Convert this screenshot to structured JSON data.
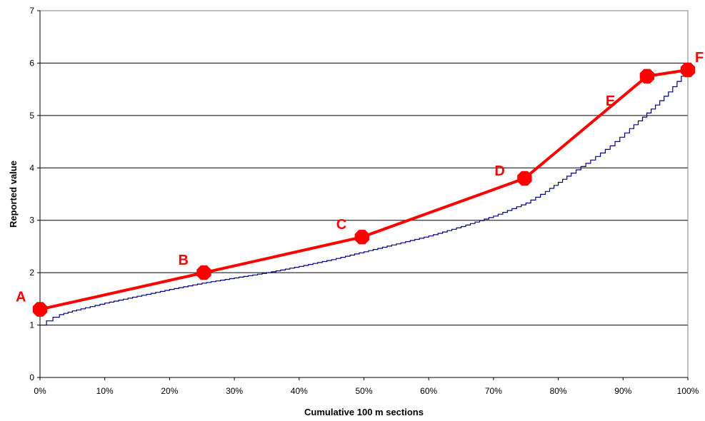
{
  "chart_data": {
    "type": "line",
    "title": "",
    "xlabel": "Cumulative 100 m sections",
    "ylabel": "Reported value",
    "xlim": [
      0,
      100
    ],
    "ylim": [
      0,
      7
    ],
    "x_ticks": [
      "0%",
      "10%",
      "20%",
      "30%",
      "40%",
      "50%",
      "60%",
      "70%",
      "80%",
      "90%",
      "100%"
    ],
    "y_ticks": [
      "0",
      "1",
      "2",
      "3",
      "4",
      "5",
      "6",
      "7"
    ],
    "grid": "horizontal",
    "series": [
      {
        "color": "#000080",
        "style": "step",
        "x": [
          0,
          1,
          2,
          3,
          5,
          7,
          10,
          15,
          20,
          25,
          30,
          35,
          40,
          45,
          50,
          55,
          60,
          65,
          70,
          75,
          78,
          82,
          85,
          88,
          91,
          93,
          95,
          97,
          99,
          100
        ],
        "y": [
          1.0,
          1.08,
          1.15,
          1.2,
          1.27,
          1.33,
          1.42,
          1.55,
          1.68,
          1.8,
          1.9,
          2.0,
          2.12,
          2.25,
          2.4,
          2.55,
          2.7,
          2.88,
          3.08,
          3.33,
          3.55,
          3.9,
          4.15,
          4.42,
          4.75,
          4.97,
          5.2,
          5.45,
          5.75,
          5.87
        ]
      },
      {
        "color": "#ff0000",
        "style": "line-markers",
        "x": [
          0,
          25.3,
          49.7,
          74.8,
          93.7,
          100
        ],
        "y": [
          1.3,
          2.0,
          2.68,
          3.8,
          5.75,
          5.87
        ],
        "labels": [
          "A",
          "B",
          "C",
          "D",
          "E",
          "F"
        ]
      }
    ]
  }
}
